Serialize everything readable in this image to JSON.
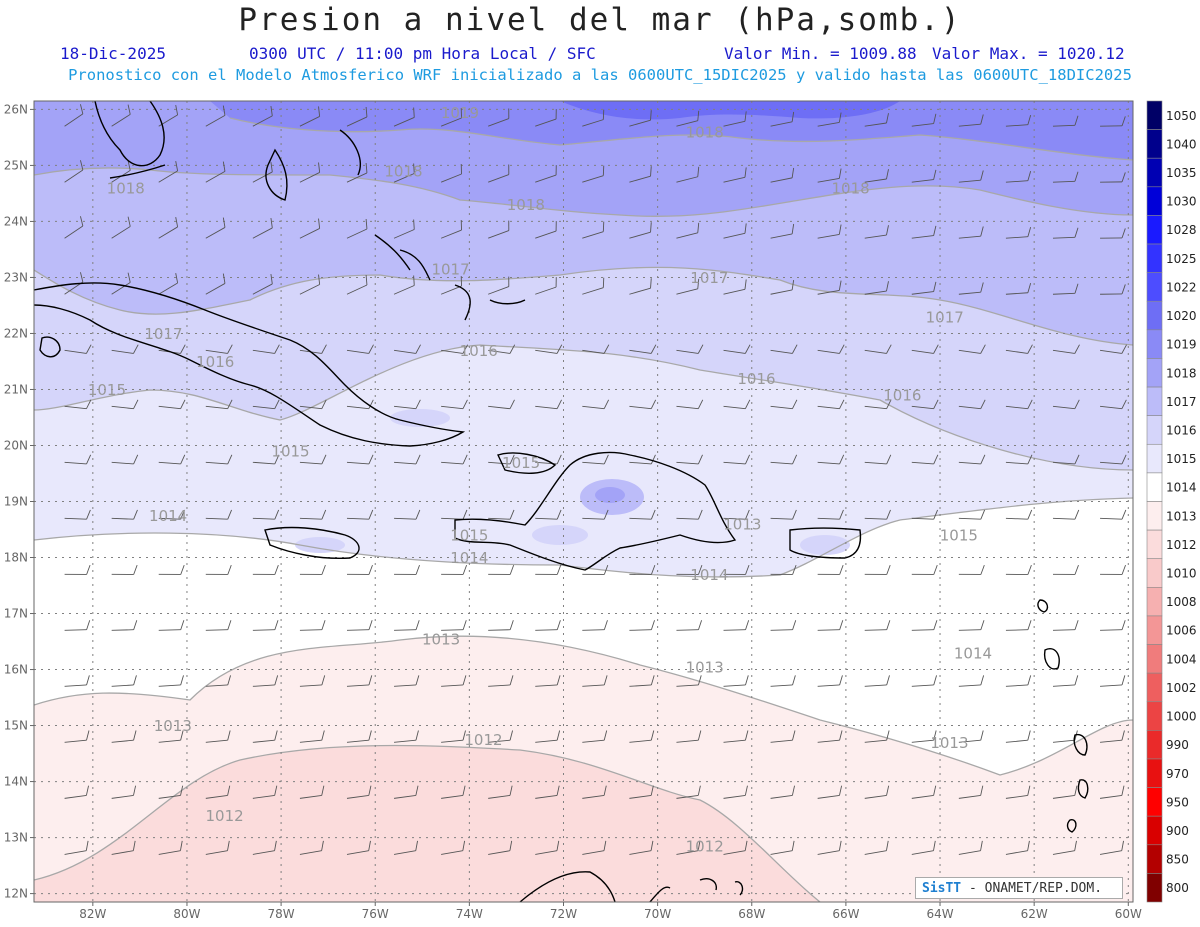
{
  "header": {
    "title": "Presion a nivel del mar (hPa,somb.)",
    "date": "18-Dic-2025",
    "time": "0300 UTC / 11:00 pm Hora Local / SFC",
    "min_label": "Valor Min. = 1009.88",
    "max_label": "Valor Max. = 1020.12",
    "model_line": "Pronostico con el Modelo Atmosferico WRF inicializado a las 0600UTC_15DIC2025 y valido hasta las  0600UTC_18DIC2025"
  },
  "axes": {
    "lat_labels": [
      "26N",
      "25N",
      "24N",
      "23N",
      "22N",
      "21N",
      "20N",
      "19N",
      "18N",
      "17N",
      "16N",
      "15N",
      "14N",
      "13N",
      "12N"
    ],
    "lon_labels": [
      "82W",
      "80W",
      "78W",
      "76W",
      "74W",
      "72W",
      "70W",
      "68W",
      "66W",
      "64W",
      "62W",
      "60W"
    ]
  },
  "colorbar": {
    "levels": [
      {
        "label": "1050",
        "color": "#000066"
      },
      {
        "label": "1040",
        "color": "#00008c"
      },
      {
        "label": "1035",
        "color": "#0000b3"
      },
      {
        "label": "1030",
        "color": "#0000d9"
      },
      {
        "label": "1028",
        "color": "#1a1aff"
      },
      {
        "label": "1025",
        "color": "#3333ff"
      },
      {
        "label": "1022",
        "color": "#4d4dff"
      },
      {
        "label": "1020",
        "color": "#6e6ef5"
      },
      {
        "label": "1019",
        "color": "#8a8af6"
      },
      {
        "label": "1018",
        "color": "#a3a3f7"
      },
      {
        "label": "1017",
        "color": "#bcbcf9"
      },
      {
        "label": "1016",
        "color": "#d5d5fa"
      },
      {
        "label": "1015",
        "color": "#e8e8fc"
      },
      {
        "label": "1014",
        "color": "#ffffff"
      },
      {
        "label": "1013",
        "color": "#fdeeee"
      },
      {
        "label": "1012",
        "color": "#fbdcdc"
      },
      {
        "label": "1010",
        "color": "#f9caca"
      },
      {
        "label": "1008",
        "color": "#f6b0b0"
      },
      {
        "label": "1006",
        "color": "#f39696"
      },
      {
        "label": "1004",
        "color": "#f07c7c"
      },
      {
        "label": "1002",
        "color": "#ee5f5f"
      },
      {
        "label": "1000",
        "color": "#ec4444"
      },
      {
        "label": "990",
        "color": "#ea2a2a"
      },
      {
        "label": "970",
        "color": "#e81111"
      },
      {
        "label": "950",
        "color": "#ff0000"
      },
      {
        "label": "900",
        "color": "#d90000"
      },
      {
        "label": "850",
        "color": "#b30000"
      },
      {
        "label": "800",
        "color": "#800000"
      }
    ]
  },
  "contour_labels": [
    {
      "text": "1019",
      "lon": -74.2,
      "lat": 25.85
    },
    {
      "text": "1018",
      "lon": -69.0,
      "lat": 25.5
    },
    {
      "text": "1018",
      "lon": -81.3,
      "lat": 24.5
    },
    {
      "text": "1018",
      "lon": -75.4,
      "lat": 24.8
    },
    {
      "text": "1018",
      "lon": -72.8,
      "lat": 24.2
    },
    {
      "text": "1018",
      "lon": -65.9,
      "lat": 24.5
    },
    {
      "text": "1017",
      "lon": -74.4,
      "lat": 23.05
    },
    {
      "text": "1017",
      "lon": -68.9,
      "lat": 22.9
    },
    {
      "text": "1017",
      "lon": -63.9,
      "lat": 22.2
    },
    {
      "text": "1017",
      "lon": -80.5,
      "lat": 21.9
    },
    {
      "text": "1016",
      "lon": -79.4,
      "lat": 21.4
    },
    {
      "text": "1016",
      "lon": -73.8,
      "lat": 21.6
    },
    {
      "text": "1016",
      "lon": -67.9,
      "lat": 21.1
    },
    {
      "text": "1016",
      "lon": -64.8,
      "lat": 20.8
    },
    {
      "text": "1015",
      "lon": -81.7,
      "lat": 20.9
    },
    {
      "text": "1015",
      "lon": -77.8,
      "lat": 19.8
    },
    {
      "text": "1015",
      "lon": -72.9,
      "lat": 19.6
    },
    {
      "text": "1015",
      "lon": -74.0,
      "lat": 18.3
    },
    {
      "text": "1015",
      "lon": -63.6,
      "lat": 18.3
    },
    {
      "text": "1014",
      "lon": -80.4,
      "lat": 18.65
    },
    {
      "text": "1014",
      "lon": -74.0,
      "lat": 17.9
    },
    {
      "text": "1014",
      "lon": -68.9,
      "lat": 17.6
    },
    {
      "text": "1014",
      "lon": -63.3,
      "lat": 16.2
    },
    {
      "text": "1013",
      "lon": -68.2,
      "lat": 18.5
    },
    {
      "text": "1013",
      "lon": -74.6,
      "lat": 16.45
    },
    {
      "text": "1013",
      "lon": -69.0,
      "lat": 15.95
    },
    {
      "text": "1013",
      "lon": -80.3,
      "lat": 14.9
    },
    {
      "text": "1013",
      "lon": -63.8,
      "lat": 14.6
    },
    {
      "text": "1012",
      "lon": -73.7,
      "lat": 14.65
    },
    {
      "text": "1012",
      "lon": -79.2,
      "lat": 13.3
    },
    {
      "text": "1012",
      "lon": -69.0,
      "lat": 12.75
    }
  ],
  "credit": {
    "brand": "SisTT",
    "text": " - ONAMET/REP.DOM."
  }
}
